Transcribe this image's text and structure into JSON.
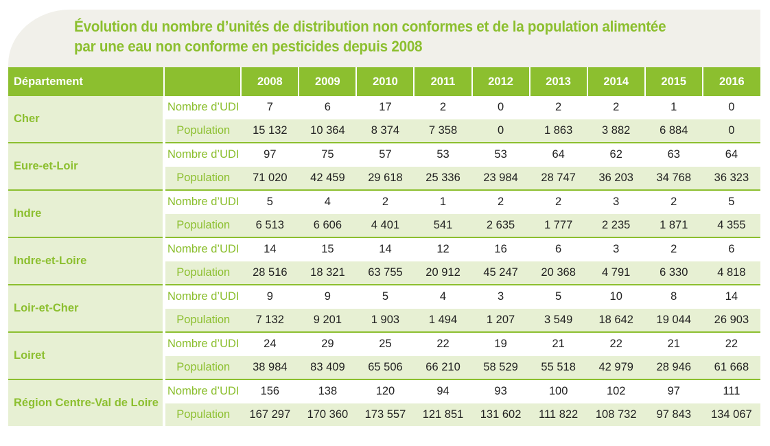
{
  "title": {
    "line1": "Évolution du nombre d’unités de distribution non conformes et de la population alimentée",
    "line2": "par une eau non conforme en pesticides depuis 2008"
  },
  "table": {
    "header_dep": "Département",
    "header_label": "",
    "years": [
      "2008",
      "2009",
      "2010",
      "2011",
      "2012",
      "2013",
      "2014",
      "2015",
      "2016"
    ],
    "udi_label": "Nombre d’UDI",
    "pop_label": "Population",
    "rows": [
      {
        "dep": "Cher",
        "udi": [
          "7",
          "6",
          "17",
          "2",
          "0",
          "2",
          "2",
          "1",
          "0"
        ],
        "pop": [
          "15 132",
          "10 364",
          "8 374",
          "7 358",
          "0",
          "1 863",
          "3 882",
          "6 884",
          "0"
        ]
      },
      {
        "dep": "Eure-et-Loir",
        "udi": [
          "97",
          "75",
          "57",
          "53",
          "53",
          "64",
          "62",
          "63",
          "64"
        ],
        "pop": [
          "71 020",
          "42 459",
          "29 618",
          "25 336",
          "23 984",
          "28 747",
          "36 203",
          "34 768",
          "36 323"
        ]
      },
      {
        "dep": "Indre",
        "udi": [
          "5",
          "4",
          "2",
          "1",
          "2",
          "2",
          "3",
          "2",
          "5"
        ],
        "pop": [
          "6 513",
          "6 606",
          "4 401",
          "541",
          "2 635",
          "1 777",
          "2 235",
          "1 871",
          "4 355"
        ]
      },
      {
        "dep": "Indre-et-Loire",
        "udi": [
          "14",
          "15",
          "14",
          "12",
          "16",
          "6",
          "3",
          "2",
          "6"
        ],
        "pop": [
          "28 516",
          "18 321",
          "63 755",
          "20 912",
          "45 247",
          "20 368",
          "4 791",
          "6 330",
          "4 818"
        ]
      },
      {
        "dep": "Loir-et-Cher",
        "udi": [
          "9",
          "9",
          "5",
          "4",
          "3",
          "5",
          "10",
          "8",
          "14"
        ],
        "pop": [
          "7 132",
          "9 201",
          "1 903",
          "1 494",
          "1 207",
          "3 549",
          "18 642",
          "19 044",
          "26 903"
        ]
      },
      {
        "dep": "Loiret",
        "udi": [
          "24",
          "29",
          "25",
          "22",
          "19",
          "21",
          "22",
          "21",
          "22"
        ],
        "pop": [
          "38 984",
          "83 409",
          "65 506",
          "66 210",
          "58 529",
          "55 518",
          "42 979",
          "28 946",
          "61 668"
        ]
      },
      {
        "dep": "Région Centre-Val de Loire",
        "udi": [
          "156",
          "138",
          "120",
          "94",
          "93",
          "100",
          "102",
          "97",
          "111"
        ],
        "pop": [
          "167 297",
          "170 360",
          "173 557",
          "121 851",
          "131 602",
          "111 822",
          "108 732",
          "97 843",
          "134 067"
        ]
      }
    ]
  },
  "colors": {
    "accent": "#8cbf2f",
    "band_light": "#e7f0d3",
    "title_band": "#f1f0ea"
  }
}
